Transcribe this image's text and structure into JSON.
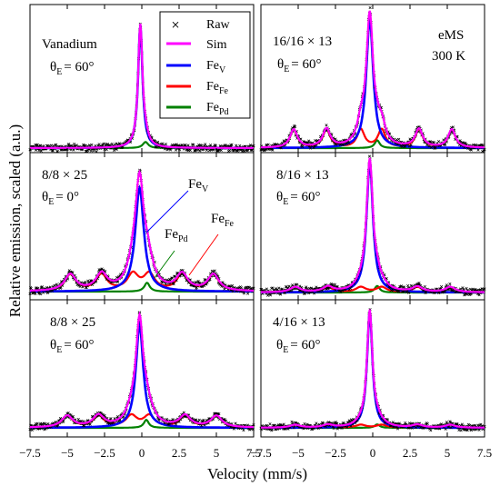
{
  "figure": {
    "ylabel": "Relative emission, scaled (a.u.)",
    "xlabel": "Velocity (mm/s)"
  },
  "colors": {
    "raw": "#000000",
    "sim": "#ff00ff",
    "fe_v": "#0000ff",
    "fe_fe": "#ff0000",
    "fe_pd": "#008000"
  },
  "legend": {
    "items": [
      {
        "key": "raw",
        "label": "Raw",
        "sub": ""
      },
      {
        "key": "sim",
        "label": "Sim",
        "sub": ""
      },
      {
        "key": "fe_v",
        "label": "Fe",
        "sub": "V"
      },
      {
        "key": "fe_fe",
        "label": "Fe",
        "sub": "Fe"
      },
      {
        "key": "fe_pd",
        "label": "Fe",
        "sub": "Pd"
      }
    ],
    "placement": "top-right of left panel"
  },
  "annotations": {
    "technique": "eMS",
    "temperature": "300 K",
    "fe_v_label": {
      "main": "Fe",
      "sub": "V"
    },
    "fe_pd_label": {
      "main": "Fe",
      "sub": "Pd"
    },
    "fe_fe_label": {
      "main": "Fe",
      "sub": "Fe"
    }
  },
  "chart_data": {
    "type": "line",
    "x_range": [
      -7.5,
      7.5
    ],
    "x_ticks": [
      -7.5,
      -5,
      -2.5,
      0,
      2.5,
      5,
      7.5
    ],
    "x_tick_labels": [
      "−7.5",
      "−5",
      "−2.5",
      "0",
      "2.5",
      "5",
      "7.5"
    ],
    "xlabel": "Velocity (mm/s)",
    "ylabel": "Relative emission, scaled (a.u.)",
    "grid": false,
    "panels": [
      {
        "column": "left",
        "row": 0,
        "sample": "Vanadium",
        "theta_label": "θ",
        "theta_sub": "E",
        "theta_value": "= 60°",
        "components": {
          "fe_v": {
            "center": -0.1,
            "hwhm": 0.18,
            "amp": 1.0
          },
          "fe_fe": null,
          "fe_pd": {
            "center": 0.25,
            "hwhm": 0.22,
            "amp": 0.05
          }
        }
      },
      {
        "column": "left",
        "row": 1,
        "sample": "8/8 × 25",
        "theta_label": "θ",
        "theta_sub": "E",
        "theta_value": "= 0°",
        "components": {
          "fe_v": {
            "center": -0.15,
            "hwhm": 0.35,
            "amp": 0.82
          },
          "fe_fe": {
            "lines": [
              -4.8,
              -2.7,
              -0.6,
              0.5,
              2.7,
              4.8
            ],
            "hwhm": 0.45,
            "amp": 0.13
          },
          "fe_pd": {
            "center": 0.35,
            "hwhm": 0.22,
            "amp": 0.07
          }
        }
      },
      {
        "column": "left",
        "row": 2,
        "sample": "8/8 × 25",
        "theta_label": "θ",
        "theta_sub": "E",
        "theta_value": "= 60°",
        "components": {
          "fe_v": {
            "center": -0.15,
            "hwhm": 0.3,
            "amp": 0.9
          },
          "fe_fe": {
            "lines": [
              -5.0,
              -2.9,
              -0.7,
              0.5,
              2.9,
              5.0
            ],
            "hwhm": 0.45,
            "amp": 0.1
          },
          "fe_pd": {
            "center": 0.3,
            "hwhm": 0.2,
            "amp": 0.07
          }
        }
      },
      {
        "column": "right",
        "row": 0,
        "sample": "16/16 × 13",
        "theta_label": "θ",
        "theta_sub": "E",
        "theta_value": "= 60°",
        "components": {
          "fe_v": {
            "center": -0.2,
            "hwhm": 0.28,
            "amp": 1.0
          },
          "fe_fe": {
            "lines": [
              -5.3,
              -3.1,
              -0.8,
              0.6,
              3.1,
              5.3
            ],
            "hwhm": 0.3,
            "amp": 0.14
          },
          "fe_pd": {
            "center": 0.3,
            "hwhm": 0.2,
            "amp": 0.06
          }
        }
      },
      {
        "column": "right",
        "row": 1,
        "sample": "8/16 × 13",
        "theta_label": "θ",
        "theta_sub": "E",
        "theta_value": "= 60°",
        "components": {
          "fe_v": {
            "center": -0.2,
            "hwhm": 0.26,
            "amp": 1.0
          },
          "fe_fe": {
            "lines": [
              -5.2,
              -3.0,
              -0.8,
              0.6,
              3.0,
              5.2
            ],
            "hwhm": 0.4,
            "amp": 0.04
          },
          "fe_pd": {
            "center": 0.3,
            "hwhm": 0.2,
            "amp": 0.05
          }
        }
      },
      {
        "column": "right",
        "row": 2,
        "sample": "4/16 × 13",
        "theta_label": "θ",
        "theta_sub": "E",
        "theta_value": "= 60°",
        "components": {
          "fe_v": {
            "center": -0.2,
            "hwhm": 0.22,
            "amp": 1.0
          },
          "fe_fe": {
            "lines": [
              -5.2,
              -3.0,
              -0.8,
              0.6,
              3.0,
              5.2
            ],
            "hwhm": 0.4,
            "amp": 0.025
          },
          "fe_pd": {
            "center": 0.3,
            "hwhm": 0.2,
            "amp": 0.03
          }
        }
      }
    ]
  }
}
